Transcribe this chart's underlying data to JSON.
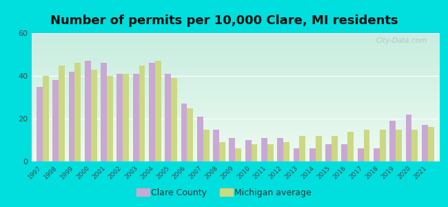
{
  "title": "Number of permits per 10,000 Clare, MI residents",
  "years": [
    1997,
    1998,
    1999,
    2000,
    2001,
    2002,
    2003,
    2004,
    2005,
    2006,
    2007,
    2008,
    2009,
    2010,
    2011,
    2012,
    2013,
    2014,
    2015,
    2016,
    2017,
    2018,
    2019,
    2020,
    2021
  ],
  "clare_county": [
    35,
    38,
    42,
    47,
    46,
    41,
    41,
    46,
    41,
    27,
    21,
    15,
    11,
    10,
    11,
    11,
    6,
    6,
    8,
    8,
    6,
    6,
    19,
    22,
    17
  ],
  "michigan_avg": [
    40,
    45,
    46,
    43,
    40,
    41,
    45,
    47,
    39,
    25,
    15,
    9,
    6,
    8,
    8,
    9,
    12,
    12,
    12,
    14,
    15,
    15,
    15,
    15,
    16
  ],
  "bar_color_clare": "#c9a8d4",
  "bar_color_michigan": "#ccd882",
  "background_outer": "#00dede",
  "ylim": [
    0,
    60
  ],
  "yticks": [
    0,
    20,
    40,
    60
  ],
  "legend_clare": "Clare County",
  "legend_michigan": "Michigan average",
  "watermark": "City-Data.com",
  "bar_width": 0.38,
  "title_fontsize": 13
}
